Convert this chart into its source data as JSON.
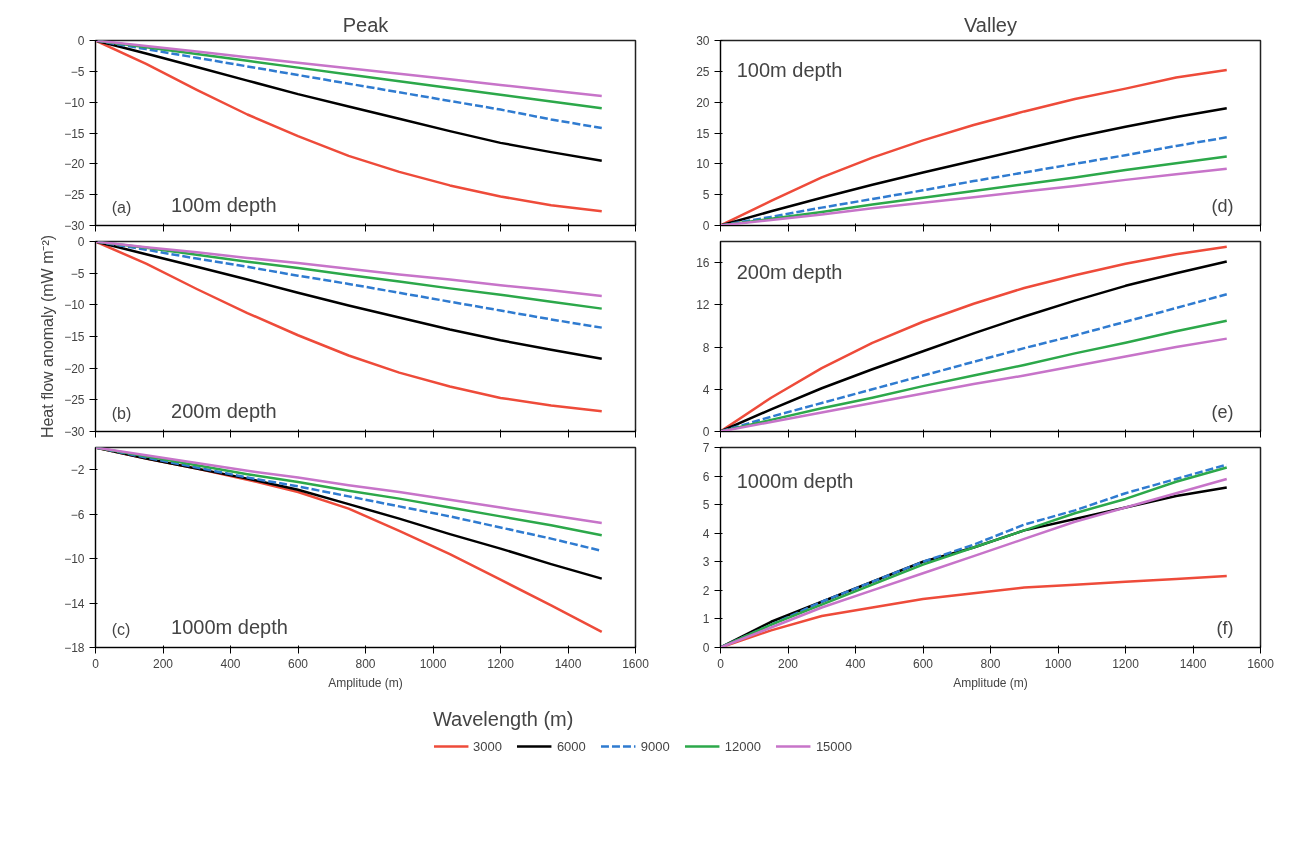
{
  "chart_data": [
    {
      "type": "line",
      "title": "Peak",
      "annotations": [
        "(a)",
        "100m depth"
      ],
      "x": [
        0,
        150,
        300,
        450,
        600,
        750,
        900,
        1050,
        1200,
        1350,
        1500
      ],
      "xlim": [
        0,
        1600
      ],
      "xticks": [
        0,
        200,
        400,
        600,
        800,
        1000,
        1200,
        1400,
        1600
      ],
      "ylim": [
        -30,
        0
      ],
      "yticks": [
        0,
        -5,
        -10,
        -15,
        -20,
        -25,
        -30
      ],
      "tick_labels": "y",
      "grid": false,
      "legend": false,
      "series": [
        {
          "color": "#ee4b3a",
          "values": [
            0,
            -3.8,
            -8,
            -12,
            -15.5,
            -18.7,
            -21.3,
            -23.5,
            -25.3,
            -26.7,
            -27.7
          ]
        },
        {
          "color": "#000000",
          "values": [
            0,
            -2.1,
            -4.3,
            -6.5,
            -8.7,
            -10.7,
            -12.7,
            -14.7,
            -16.6,
            -18.1,
            -19.5
          ]
        },
        {
          "color": "#2f7bd0",
          "line_style": "dashed",
          "values": [
            0,
            -1.4,
            -2.8,
            -4.2,
            -5.6,
            -7,
            -8.4,
            -9.8,
            -11.2,
            -12.8,
            -14.2
          ]
        },
        {
          "color": "#2ca84a",
          "values": [
            0,
            -1.1,
            -2.2,
            -3.3,
            -4.4,
            -5.5,
            -6.6,
            -7.7,
            -8.8,
            -9.9,
            -11
          ]
        },
        {
          "color": "#c774c9",
          "values": [
            0,
            -0.9,
            -1.8,
            -2.7,
            -3.6,
            -4.5,
            -5.4,
            -6.3,
            -7.2,
            -8.1,
            -9
          ]
        }
      ]
    },
    {
      "type": "line",
      "title": "Valley",
      "annotations": [
        "(d)",
        "100m depth"
      ],
      "x": [
        0,
        150,
        300,
        450,
        600,
        750,
        900,
        1050,
        1200,
        1350,
        1500
      ],
      "xlim": [
        0,
        1600
      ],
      "xticks": [
        0,
        200,
        400,
        600,
        800,
        1000,
        1200,
        1400,
        1600
      ],
      "ylim": [
        0,
        30
      ],
      "yticks": [
        0,
        5,
        10,
        15,
        20,
        25,
        30
      ],
      "tick_labels": "y",
      "grid": false,
      "legend": false,
      "series": [
        {
          "color": "#ee4b3a",
          "values": [
            0,
            4,
            7.8,
            11,
            13.8,
            16.3,
            18.5,
            20.5,
            22.2,
            24,
            25.2
          ]
        },
        {
          "color": "#000000",
          "values": [
            0,
            2.3,
            4.5,
            6.6,
            8.6,
            10.5,
            12.4,
            14.3,
            16,
            17.6,
            19
          ]
        },
        {
          "color": "#2f7bd0",
          "line_style": "dashed",
          "values": [
            0,
            1.4,
            2.9,
            4.3,
            5.7,
            7.2,
            8.6,
            10,
            11.4,
            12.9,
            14.3
          ]
        },
        {
          "color": "#2ca84a",
          "values": [
            0,
            1.1,
            2.2,
            3.4,
            4.5,
            5.6,
            6.7,
            7.8,
            9,
            10.1,
            11.2
          ]
        },
        {
          "color": "#c774c9",
          "values": [
            0,
            0.9,
            1.8,
            2.8,
            3.7,
            4.6,
            5.5,
            6.4,
            7.4,
            8.3,
            9.2
          ]
        }
      ]
    },
    {
      "type": "line",
      "ylabel": "Heat flow anomaly (mW m⁻²)",
      "annotations": [
        "(b)",
        "200m depth"
      ],
      "x": [
        0,
        150,
        300,
        450,
        600,
        750,
        900,
        1050,
        1200,
        1350,
        1500
      ],
      "xlim": [
        0,
        1600
      ],
      "xticks": [
        0,
        200,
        400,
        600,
        800,
        1000,
        1200,
        1400,
        1600
      ],
      "ylim": [
        -30,
        0
      ],
      "yticks": [
        0,
        -5,
        -10,
        -15,
        -20,
        -25,
        -30
      ],
      "tick_labels": "y",
      "grid": false,
      "legend": false,
      "series": [
        {
          "color": "#ee4b3a",
          "values": [
            0,
            -3.5,
            -7.5,
            -11.3,
            -14.8,
            -18,
            -20.7,
            -22.9,
            -24.7,
            -25.9,
            -26.8
          ]
        },
        {
          "color": "#000000",
          "values": [
            0,
            -2,
            -4,
            -6,
            -8.1,
            -10.1,
            -12,
            -13.9,
            -15.6,
            -17.1,
            -18.5
          ]
        },
        {
          "color": "#2f7bd0",
          "line_style": "dashed",
          "values": [
            0,
            -1.3,
            -2.7,
            -4,
            -5.4,
            -6.7,
            -8.1,
            -9.5,
            -10.9,
            -12.3,
            -13.6
          ]
        },
        {
          "color": "#2ca84a",
          "values": [
            0,
            -1,
            -2.1,
            -3.2,
            -4.2,
            -5.3,
            -6.3,
            -7.4,
            -8.4,
            -9.5,
            -10.6
          ]
        },
        {
          "color": "#c774c9",
          "values": [
            0,
            -0.9,
            -1.7,
            -2.6,
            -3.4,
            -4.3,
            -5.2,
            -6,
            -6.9,
            -7.7,
            -8.6
          ]
        }
      ]
    },
    {
      "type": "line",
      "annotations": [
        "(e)",
        "200m depth"
      ],
      "x": [
        0,
        150,
        300,
        450,
        600,
        750,
        900,
        1050,
        1200,
        1350,
        1500
      ],
      "xlim": [
        0,
        1600
      ],
      "xticks": [
        0,
        200,
        400,
        600,
        800,
        1000,
        1200,
        1400,
        1600
      ],
      "ylim": [
        0,
        18
      ],
      "yticks": [
        0,
        4,
        8,
        12,
        16
      ],
      "tick_labels": "y",
      "grid": false,
      "legend": false,
      "series": [
        {
          "color": "#ee4b3a",
          "values": [
            0,
            3.2,
            6,
            8.4,
            10.4,
            12.1,
            13.6,
            14.8,
            15.9,
            16.8,
            17.5
          ]
        },
        {
          "color": "#000000",
          "values": [
            0,
            2.1,
            4.1,
            5.9,
            7.6,
            9.3,
            10.9,
            12.4,
            13.8,
            15,
            16.1
          ]
        },
        {
          "color": "#2f7bd0",
          "line_style": "dashed",
          "values": [
            0,
            1.4,
            2.7,
            4,
            5.3,
            6.6,
            7.9,
            9.1,
            10.4,
            11.7,
            13
          ]
        },
        {
          "color": "#2ca84a",
          "values": [
            0,
            1.1,
            2.2,
            3.2,
            4.3,
            5.3,
            6.3,
            7.4,
            8.4,
            9.5,
            10.5
          ]
        },
        {
          "color": "#c774c9",
          "values": [
            0,
            0.9,
            1.8,
            2.7,
            3.6,
            4.5,
            5.3,
            6.2,
            7.1,
            8,
            8.8
          ]
        }
      ]
    },
    {
      "type": "line",
      "xlabel": "Amplitude (m)",
      "legend_title": "Wavelength (m)",
      "annotations": [
        "(c)",
        "1000m depth"
      ],
      "x": [
        0,
        150,
        300,
        450,
        600,
        750,
        900,
        1050,
        1200,
        1350,
        1500
      ],
      "xlim": [
        0,
        1600
      ],
      "xticks": [
        0,
        200,
        400,
        600,
        800,
        1000,
        1200,
        1400,
        1600
      ],
      "ylim": [
        -18,
        0
      ],
      "yticks": [
        -2,
        -6,
        -10,
        -14,
        -18
      ],
      "grid": false,
      "legend": "bottom",
      "series": [
        {
          "name": "3000",
          "color": "#ee4b3a",
          "values": [
            0,
            -1,
            -1.9,
            -2.9,
            -4,
            -5.5,
            -7.5,
            -9.6,
            -11.9,
            -14.2,
            -16.6
          ]
        },
        {
          "name": "6000",
          "color": "#000000",
          "values": [
            0,
            -1,
            -1.9,
            -2.8,
            -3.8,
            -5.1,
            -6.4,
            -7.8,
            -9.1,
            -10.5,
            -11.8
          ]
        },
        {
          "name": "9000",
          "color": "#2f7bd0",
          "line_style": "dashed",
          "values": [
            0,
            -0.9,
            -1.8,
            -2.7,
            -3.5,
            -4.4,
            -5.3,
            -6.2,
            -7.2,
            -8.2,
            -9.3
          ]
        },
        {
          "name": "12000",
          "color": "#2ca84a",
          "values": [
            0,
            -0.8,
            -1.6,
            -2.4,
            -3.1,
            -3.9,
            -4.6,
            -5.4,
            -6.2,
            -7,
            -7.9
          ]
        },
        {
          "name": "15000",
          "color": "#c774c9",
          "values": [
            0,
            -0.7,
            -1.4,
            -2.1,
            -2.7,
            -3.4,
            -4,
            -4.7,
            -5.4,
            -6.1,
            -6.8
          ]
        }
      ]
    },
    {
      "type": "line",
      "xlabel": "Amplitude (m)",
      "annotations": [
        "(f)",
        "1000m depth"
      ],
      "x": [
        0,
        150,
        300,
        450,
        600,
        750,
        900,
        1050,
        1200,
        1350,
        1500
      ],
      "xlim": [
        0,
        1600
      ],
      "xticks": [
        0,
        200,
        400,
        600,
        800,
        1000,
        1200,
        1400,
        1600
      ],
      "ylim": [
        0,
        7
      ],
      "yticks": [
        0,
        1,
        2,
        3,
        4,
        5,
        6,
        7
      ],
      "grid": false,
      "legend": false,
      "series": [
        {
          "color": "#ee4b3a",
          "values": [
            0,
            0.6,
            1.1,
            1.4,
            1.7,
            1.9,
            2.1,
            2.2,
            2.3,
            2.4,
            2.5
          ]
        },
        {
          "color": "#000000",
          "values": [
            0,
            0.9,
            1.6,
            2.3,
            3,
            3.5,
            4.1,
            4.5,
            4.9,
            5.3,
            5.6
          ]
        },
        {
          "color": "#2f7bd0",
          "line_style": "dashed",
          "values": [
            0,
            0.8,
            1.6,
            2.3,
            3,
            3.6,
            4.3,
            4.8,
            5.4,
            5.9,
            6.4
          ]
        },
        {
          "color": "#2ca84a",
          "values": [
            0,
            0.8,
            1.5,
            2.2,
            2.9,
            3.5,
            4.1,
            4.7,
            5.2,
            5.8,
            6.3
          ]
        },
        {
          "color": "#c774c9",
          "values": [
            0,
            0.7,
            1.4,
            2,
            2.6,
            3.2,
            3.8,
            4.4,
            4.9,
            5.4,
            5.9
          ]
        }
      ]
    }
  ]
}
